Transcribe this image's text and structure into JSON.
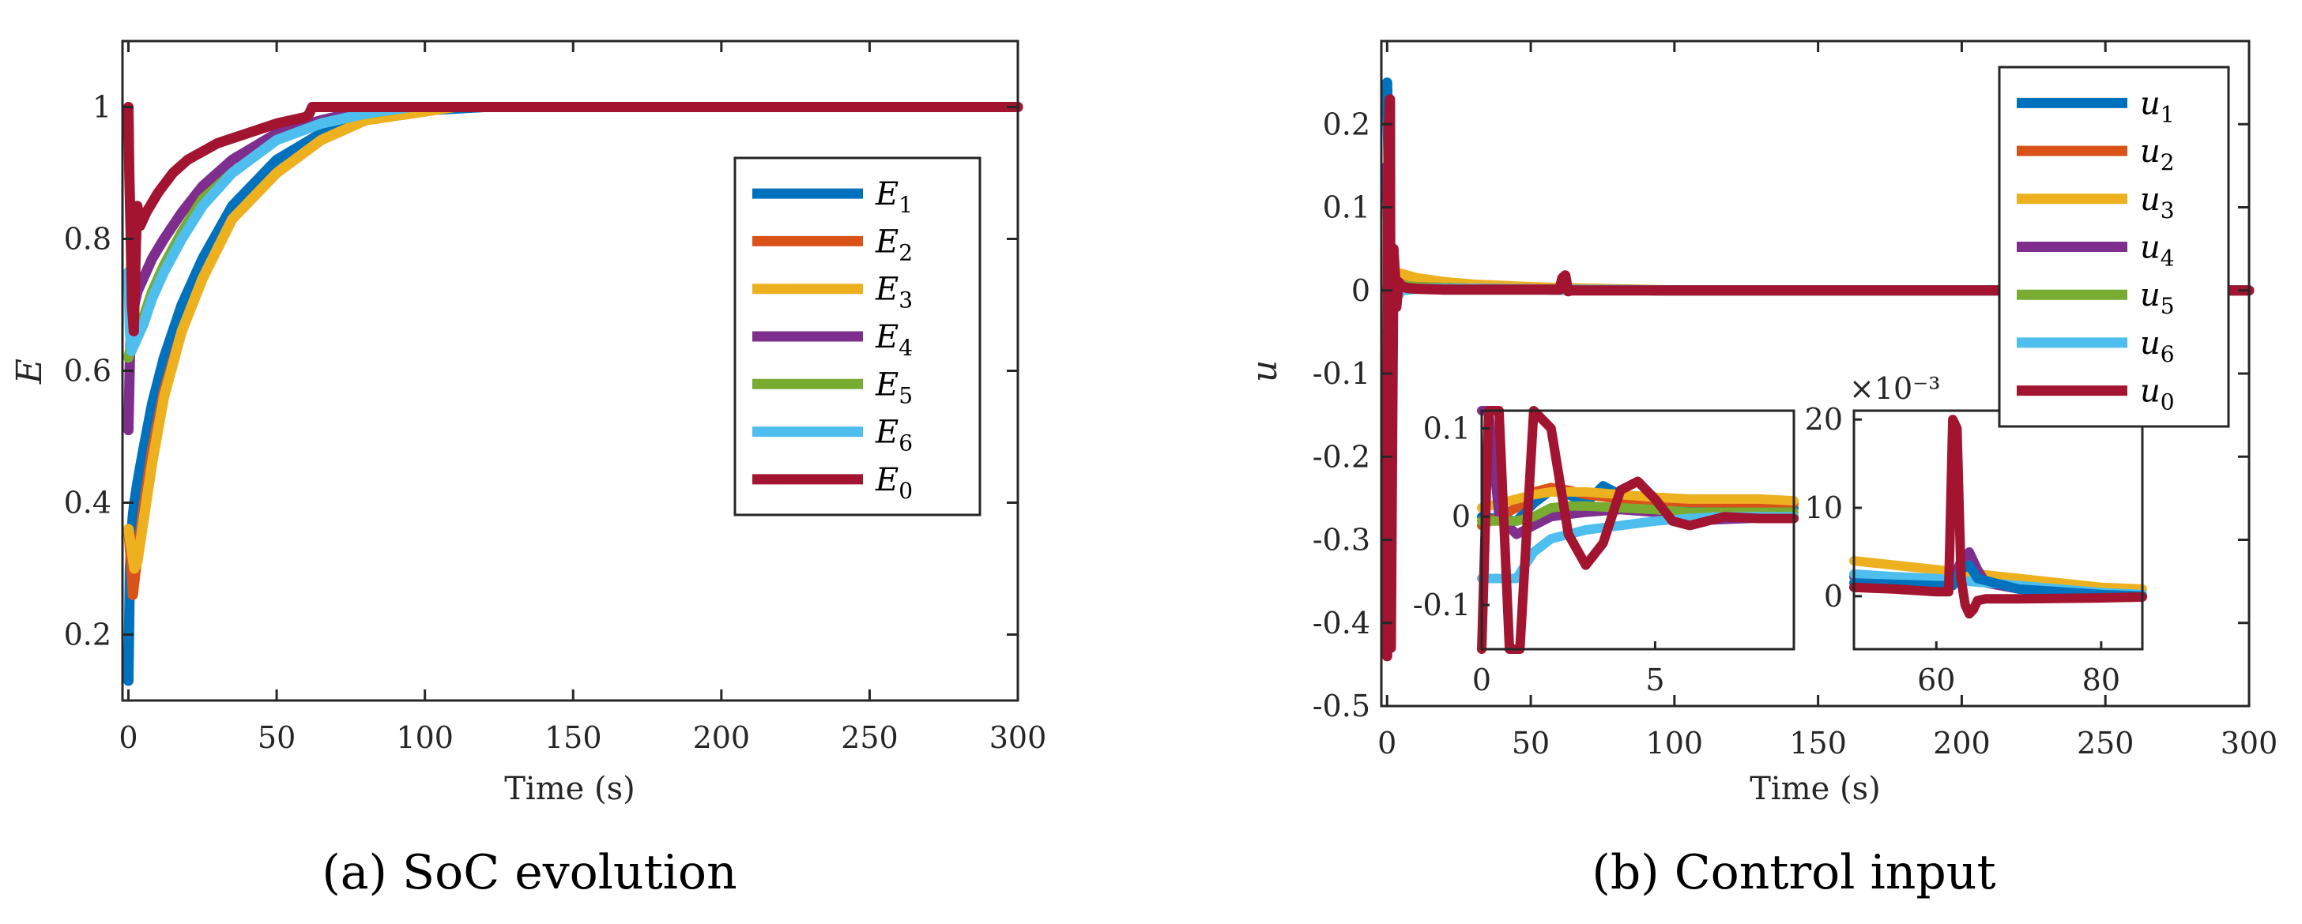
{
  "captions": {
    "left": "(a)  SoC evolution",
    "right": "(b)  Control input"
  },
  "chart_data": [
    {
      "id": "soc",
      "type": "line",
      "title": "",
      "xlabel": "Time (s)",
      "ylabel": "E",
      "xlim": [
        -2,
        300
      ],
      "ylim": [
        0.1,
        1.1
      ],
      "xticks": [
        0,
        50,
        100,
        150,
        200,
        250,
        300
      ],
      "xtick_labels": [
        "0",
        "50",
        "100",
        "150",
        "200",
        "250",
        "300"
      ],
      "yticks": [
        0.2,
        0.4,
        0.6,
        0.8,
        1.0
      ],
      "ytick_labels": [
        "0.2",
        "0.4",
        "0.6",
        "0.8",
        "1"
      ],
      "grid": false,
      "legend_position": "right-middle",
      "series": [
        {
          "name": "E",
          "sub": "1",
          "color": "#0072BD",
          "x": [
            0,
            0.5,
            1,
            1.5,
            2,
            3,
            5,
            8,
            12,
            18,
            25,
            35,
            50,
            65,
            80,
            100,
            120,
            150,
            200,
            300
          ],
          "y": [
            0.13,
            0.3,
            0.35,
            0.38,
            0.4,
            0.43,
            0.48,
            0.55,
            0.62,
            0.7,
            0.77,
            0.85,
            0.92,
            0.96,
            0.985,
            0.995,
            1.0,
            1.0,
            1.0,
            1.0
          ]
        },
        {
          "name": "E",
          "sub": "2",
          "color": "#D95319",
          "x": [
            0,
            1,
            1.5,
            2,
            3,
            5,
            8,
            12,
            18,
            25,
            35,
            50,
            65,
            80,
            95,
            110,
            130,
            150,
            200,
            300
          ],
          "y": [
            0.36,
            0.3,
            0.26,
            0.28,
            0.32,
            0.39,
            0.48,
            0.57,
            0.66,
            0.74,
            0.83,
            0.9,
            0.95,
            0.98,
            0.99,
            1.0,
            1.0,
            1.0,
            1.0,
            1.0
          ]
        },
        {
          "name": "E",
          "sub": "3",
          "color": "#EDB120",
          "x": [
            0,
            1,
            2,
            3,
            5,
            8,
            12,
            18,
            25,
            35,
            50,
            65,
            80,
            95,
            110,
            130,
            150,
            200,
            300
          ],
          "y": [
            0.36,
            0.33,
            0.3,
            0.31,
            0.37,
            0.46,
            0.56,
            0.66,
            0.74,
            0.83,
            0.9,
            0.95,
            0.98,
            0.99,
            1.0,
            1.0,
            1.0,
            1.0,
            1.0
          ]
        },
        {
          "name": "E",
          "sub": "4",
          "color": "#7E2F8E",
          "x": [
            0,
            0.5,
            1,
            2,
            3,
            5,
            8,
            12,
            18,
            25,
            35,
            50,
            65,
            80,
            95,
            110,
            130,
            150,
            200,
            300
          ],
          "y": [
            0.51,
            0.62,
            0.68,
            0.7,
            0.72,
            0.74,
            0.77,
            0.8,
            0.84,
            0.88,
            0.92,
            0.96,
            0.98,
            0.995,
            1.0,
            1.0,
            1.0,
            1.0,
            1.0,
            1.0
          ]
        },
        {
          "name": "E",
          "sub": "5",
          "color": "#77AC30",
          "x": [
            0,
            0.5,
            1,
            2,
            3,
            5,
            8,
            12,
            18,
            25,
            35,
            50,
            65,
            80,
            95,
            110,
            130,
            150,
            200,
            300
          ],
          "y": [
            0.62,
            0.63,
            0.64,
            0.65,
            0.66,
            0.68,
            0.72,
            0.76,
            0.81,
            0.86,
            0.9,
            0.95,
            0.975,
            0.99,
            1.0,
            1.0,
            1.0,
            1.0,
            1.0,
            1.0
          ]
        },
        {
          "name": "E",
          "sub": "6",
          "color": "#4DBEEE",
          "x": [
            0,
            0.5,
            1,
            2,
            3,
            5,
            8,
            12,
            18,
            25,
            35,
            50,
            65,
            80,
            95,
            110,
            130,
            150,
            200,
            300
          ],
          "y": [
            0.75,
            0.66,
            0.63,
            0.64,
            0.65,
            0.67,
            0.71,
            0.75,
            0.8,
            0.85,
            0.9,
            0.95,
            0.975,
            0.99,
            1.0,
            1.0,
            1.0,
            1.0,
            1.0,
            1.0
          ]
        },
        {
          "name": "E",
          "sub": "0",
          "color": "#A2142F",
          "x": [
            0,
            0.3,
            0.8,
            1.2,
            1.8,
            2.5,
            3,
            4,
            6,
            10,
            15,
            20,
            30,
            40,
            50,
            60,
            61,
            62,
            63,
            64,
            80,
            100,
            150,
            200,
            300
          ],
          "y": [
            1.0,
            0.9,
            0.8,
            0.7,
            0.66,
            0.79,
            0.85,
            0.82,
            0.84,
            0.87,
            0.9,
            0.92,
            0.945,
            0.96,
            0.975,
            0.985,
            0.99,
            1.0,
            1.0,
            1.0,
            1.0,
            1.0,
            1.0,
            1.0,
            1.0
          ]
        }
      ]
    },
    {
      "id": "control",
      "type": "line",
      "title": "",
      "xlabel": "Time (s)",
      "ylabel": "u",
      "xlim": [
        -2,
        300
      ],
      "ylim": [
        -0.5,
        0.3
      ],
      "xticks": [
        0,
        50,
        100,
        150,
        200,
        250,
        300
      ],
      "xtick_labels": [
        "0",
        "50",
        "100",
        "150",
        "200",
        "250",
        "300"
      ],
      "yticks": [
        0.2,
        0.1,
        0,
        -0.1,
        -0.2,
        -0.3,
        -0.4,
        -0.5
      ],
      "ytick_labels": [
        "0.2",
        "0.1",
        "0",
        "-0.1",
        "-0.2",
        "-0.3",
        "-0.4",
        "-0.5"
      ],
      "grid": false,
      "legend_position": "top-right",
      "series": [
        {
          "name": "u",
          "sub": "1",
          "color": "#0072BD",
          "x": [
            0,
            0.5,
            1,
            1.5,
            2,
            3,
            5,
            10,
            30,
            60,
            100,
            300
          ],
          "y": [
            0.25,
            0.15,
            -0.05,
            -0.1,
            -0.02,
            0.02,
            0.01,
            0.005,
            0.003,
            0.001,
            0.0,
            0.0
          ]
        },
        {
          "name": "u",
          "sub": "2",
          "color": "#D95319",
          "x": [
            0,
            1,
            2,
            3,
            5,
            10,
            30,
            60,
            100,
            300
          ],
          "y": [
            0.0,
            0.01,
            0.02,
            0.015,
            0.01,
            0.006,
            0.003,
            0.001,
            0.0,
            0.0
          ]
        },
        {
          "name": "u",
          "sub": "3",
          "color": "#EDB120",
          "x": [
            0,
            1,
            2,
            3,
            5,
            10,
            20,
            30,
            50,
            60,
            100,
            300
          ],
          "y": [
            0.0,
            0.02,
            0.02,
            0.02,
            0.02,
            0.015,
            0.01,
            0.007,
            0.004,
            0.003,
            0.0,
            0.0
          ]
        },
        {
          "name": "u",
          "sub": "4",
          "color": "#7E2F8E",
          "x": [
            0,
            0.5,
            1,
            2,
            3,
            5,
            10,
            30,
            60,
            100,
            300
          ],
          "y": [
            0.15,
            0.05,
            -0.05,
            0.0,
            0.01,
            0.005,
            0.004,
            0.002,
            0.001,
            0.0,
            0.0
          ]
        },
        {
          "name": "u",
          "sub": "5",
          "color": "#77AC30",
          "x": [
            0,
            1,
            2,
            3,
            5,
            10,
            30,
            60,
            100,
            300
          ],
          "y": [
            0.0,
            0.0,
            0.005,
            0.008,
            0.006,
            0.004,
            0.002,
            0.001,
            0.0,
            0.0
          ]
        },
        {
          "name": "u",
          "sub": "6",
          "color": "#4DBEEE",
          "x": [
            0,
            1,
            1.5,
            2,
            3,
            5,
            10,
            30,
            60,
            100,
            300
          ],
          "y": [
            -0.05,
            -0.06,
            -0.04,
            -0.02,
            -0.01,
            0.0,
            0.002,
            0.002,
            0.001,
            0.0,
            0.0
          ]
        },
        {
          "name": "u",
          "sub": "0",
          "color": "#A2142F",
          "x": [
            0,
            0.3,
            0.6,
            1.0,
            1.3,
            1.7,
            2.2,
            2.7,
            3.2,
            4,
            5,
            7,
            10,
            20,
            40,
            60,
            61,
            62,
            63,
            64,
            80,
            100,
            300
          ],
          "y": [
            -0.44,
            0.1,
            0.2,
            0.23,
            -0.43,
            -0.2,
            0.05,
            0.02,
            -0.02,
            0.01,
            0.005,
            0.003,
            0.002,
            0.001,
            0.001,
            0.001,
            0.015,
            0.018,
            -0.001,
            0.0,
            0.0,
            0.0,
            0.0
          ]
        }
      ]
    },
    {
      "id": "inset-early",
      "type": "line",
      "xlim": [
        0,
        9
      ],
      "ylim": [
        -0.15,
        0.12
      ],
      "xticks": [
        0,
        5
      ],
      "xtick_labels": [
        "0",
        "5"
      ],
      "yticks": [
        0.1,
        0,
        -0.1
      ],
      "ytick_labels": [
        "0.1",
        "0",
        "-0.1"
      ],
      "series": [
        {
          "name": "u1",
          "color": "#0072BD",
          "x": [
            0,
            1.0,
            1.5,
            2.0,
            2.5,
            3.0,
            3.5,
            4.0,
            4.5,
            5.0,
            6.0,
            7.0,
            9.0
          ],
          "y": [
            0.0,
            -0.005,
            0.015,
            0.03,
            0.025,
            0.015,
            0.035,
            0.025,
            0.01,
            0.008,
            0.008,
            0.01,
            0.01
          ]
        },
        {
          "name": "u2",
          "color": "#D95319",
          "x": [
            0,
            0.5,
            1.0,
            1.5,
            2.0,
            2.5,
            3.0,
            4.0,
            5.0,
            6.0,
            9.0
          ],
          "y": [
            -0.01,
            0.0,
            0.01,
            0.028,
            0.033,
            0.03,
            0.025,
            0.02,
            0.018,
            0.016,
            0.015
          ]
        },
        {
          "name": "u3",
          "color": "#EDB120",
          "x": [
            0,
            0.5,
            1.0,
            1.5,
            2.0,
            3.0,
            4.0,
            5.0,
            6.0,
            7.0,
            8.0,
            9.0
          ],
          "y": [
            0.01,
            0.015,
            0.02,
            0.025,
            0.028,
            0.028,
            0.025,
            0.022,
            0.02,
            0.02,
            0.02,
            0.018
          ]
        },
        {
          "name": "u4",
          "color": "#7E2F8E",
          "x": [
            0,
            0.2,
            0.5,
            1.0,
            1.5,
            2.0,
            3.0,
            4.0,
            5.0,
            6.0,
            7.0,
            9.0
          ],
          "y": [
            0.12,
            0.12,
            0.0,
            -0.02,
            -0.01,
            0.0,
            0.005,
            0.008,
            0.005,
            -0.005,
            -0.003,
            0.0
          ]
        },
        {
          "name": "u5",
          "color": "#77AC30",
          "x": [
            0,
            1.0,
            1.5,
            2.0,
            2.5,
            3.0,
            4.0,
            5.0,
            6.0,
            9.0
          ],
          "y": [
            -0.005,
            -0.005,
            0.0,
            0.01,
            0.012,
            0.012,
            0.01,
            0.008,
            0.005,
            0.005
          ]
        },
        {
          "name": "u6",
          "color": "#4DBEEE",
          "x": [
            0,
            1.0,
            1.5,
            2.0,
            2.5,
            3.0,
            4.0,
            5.0,
            6.0,
            7.0,
            9.0
          ],
          "y": [
            -0.07,
            -0.07,
            -0.04,
            -0.025,
            -0.02,
            -0.015,
            -0.01,
            -0.005,
            -0.002,
            0.0,
            0.0
          ]
        },
        {
          "name": "u0",
          "color": "#A2142F",
          "x": [
            0,
            0.2,
            0.5,
            0.8,
            1.1,
            1.5,
            2.0,
            2.5,
            3.0,
            3.5,
            4.0,
            4.5,
            5.0,
            5.5,
            6.0,
            6.5,
            7.0,
            8.0,
            9.0
          ],
          "y": [
            -0.15,
            0.12,
            0.12,
            -0.15,
            -0.15,
            0.12,
            0.1,
            -0.02,
            -0.055,
            -0.03,
            0.03,
            0.04,
            0.02,
            -0.005,
            -0.01,
            -0.005,
            0.0,
            -0.002,
            -0.002
          ]
        }
      ]
    },
    {
      "id": "inset-spike",
      "type": "line",
      "xlim": [
        50,
        85
      ],
      "ylim": [
        -0.006,
        0.021
      ],
      "multiplier": "×10⁻³",
      "xticks": [
        60,
        80
      ],
      "xtick_labels": [
        "60",
        "80"
      ],
      "yticks": [
        0.02,
        0.01,
        0
      ],
      "ytick_labels": [
        "20",
        "10",
        "0"
      ],
      "series": [
        {
          "name": "u3",
          "color": "#EDB120",
          "x": [
            50,
            55,
            60,
            62,
            65,
            70,
            75,
            80,
            85
          ],
          "y": [
            0.004,
            0.0035,
            0.003,
            0.0028,
            0.0025,
            0.002,
            0.0015,
            0.001,
            0.0008
          ]
        },
        {
          "name": "u4",
          "color": "#7E2F8E",
          "x": [
            50,
            60,
            62,
            63,
            64,
            65,
            66,
            70,
            80,
            85
          ],
          "y": [
            0.0022,
            0.0018,
            0.0018,
            0.004,
            0.005,
            0.003,
            0.0015,
            0.0008,
            0.0003,
            0.0001
          ]
        },
        {
          "name": "u6",
          "color": "#4DBEEE",
          "x": [
            50,
            55,
            60,
            62,
            65,
            70,
            75,
            80,
            85
          ],
          "y": [
            0.0025,
            0.0022,
            0.002,
            0.0018,
            0.0016,
            0.0012,
            0.0008,
            0.0004,
            0.0002
          ]
        },
        {
          "name": "u1",
          "color": "#0072BD",
          "x": [
            50,
            60,
            62,
            63,
            64,
            65,
            70,
            80,
            85
          ],
          "y": [
            0.0015,
            0.0012,
            0.0012,
            0.003,
            0.0035,
            0.002,
            0.0008,
            0.0002,
            0.0
          ]
        },
        {
          "name": "u0",
          "color": "#A2142F",
          "x": [
            50,
            55,
            60,
            61.5,
            62,
            62.5,
            63,
            63.5,
            64,
            64.5,
            65,
            66,
            70,
            80,
            85
          ],
          "y": [
            0.001,
            0.0008,
            0.0005,
            0.0005,
            0.02,
            0.019,
            0.002,
            -0.001,
            -0.002,
            -0.0015,
            -0.0005,
            -0.0003,
            -0.0003,
            -0.0002,
            -0.0001
          ]
        }
      ]
    }
  ]
}
